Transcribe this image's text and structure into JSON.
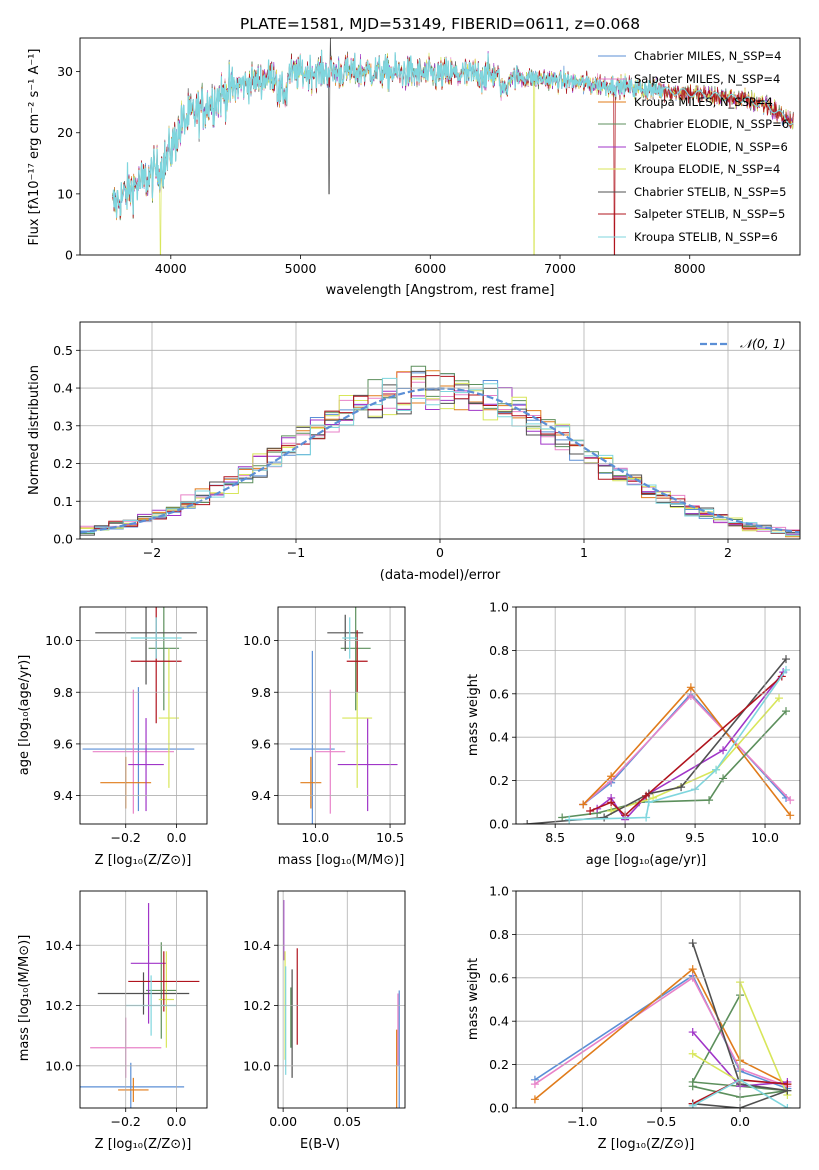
{
  "colors": {
    "series": [
      "#5b8fd6",
      "#e882c8",
      "#e07b1a",
      "#5c8f5c",
      "#a035c8",
      "#d8e65a",
      "#505050",
      "#b0141e",
      "#7fd6de"
    ],
    "gaussian": "#5b8fd6",
    "grid": "#b0b0b0"
  },
  "spectrum_panel": {
    "title": "PLATE=1581, MJD=53149, FIBERID=0611, z=0.068",
    "xlabel": "wavelength [Angstrom, rest frame]",
    "ylabel": "Flux [fλ10⁻¹⁷ erg cm⁻² s⁻¹ A⁻¹]",
    "xticks": [
      "4000",
      "5000",
      "6000",
      "7000",
      "8000"
    ],
    "yticks": [
      "0",
      "10",
      "20",
      "30"
    ],
    "legend": [
      "Chabrier MILES, N_SSP=4",
      "Salpeter MILES, N_SSP=4",
      "Kroupa MILES, N_SSP=4",
      "Chabrier ELODIE, N_SSP=6",
      "Salpeter ELODIE, N_SSP=6",
      "Kroupa ELODIE, N_SSP=4",
      "Chabrier STELIB, N_SSP=5",
      "Salpeter STELIB, N_SSP=5",
      "Kroupa STELIB, N_SSP=6"
    ]
  },
  "residual_panel": {
    "xlabel": "(data-model)/error",
    "ylabel": "Normed distribution",
    "legend": "𝒩(0, 1)",
    "xticks": [
      "−2",
      "−1",
      "0",
      "1",
      "2"
    ],
    "yticks": [
      "0.0",
      "0.1",
      "0.2",
      "0.3",
      "0.4",
      "0.5"
    ]
  },
  "panel_labels": {
    "z_label": "Z [log₁₀(Z/Z⊙)]",
    "age_label": "age  [log₁₀(age/yr)]",
    "mass_label": "mass [log₁₀(M/M⊙)]",
    "ebv_label": "E(B-V)",
    "mass_weight_label": "mass weight"
  },
  "chart_data": [
    {
      "type": "line",
      "panel": "spectrum",
      "xlim": [
        3300,
        8850
      ],
      "ylim": [
        0,
        35.5
      ],
      "continuum_knots": [
        [
          3550,
          8
        ],
        [
          3700,
          11
        ],
        [
          3850,
          13
        ],
        [
          3950,
          15
        ],
        [
          4100,
          22
        ],
        [
          4300,
          25
        ],
        [
          4500,
          27.5
        ],
        [
          4800,
          29.5
        ],
        [
          5100,
          30
        ],
        [
          5500,
          30
        ],
        [
          6000,
          29.5
        ],
        [
          6500,
          29.5
        ],
        [
          7000,
          28.5
        ],
        [
          7500,
          27.5
        ],
        [
          8000,
          26.5
        ],
        [
          8400,
          25.5
        ],
        [
          8600,
          24.5
        ],
        [
          8800,
          21.5
        ]
      ],
      "spikes": [
        [
          3920,
          0
        ],
        [
          5220,
          10
        ],
        [
          5230,
          36
        ],
        [
          6800,
          0
        ],
        [
          7420,
          0
        ]
      ]
    },
    {
      "type": "bar",
      "panel": "residual_histogram",
      "xlim": [
        -2.5,
        2.5
      ],
      "ylim": [
        0,
        0.575
      ],
      "bin_width": 0.1,
      "gaussian": {
        "mean": 0,
        "sigma": 1
      }
    },
    {
      "type": "scatter",
      "panel": "age_vs_Z",
      "xlim": [
        -0.38,
        0.12
      ],
      "ylim": [
        9.29,
        10.13
      ],
      "xticks": [
        -0.2,
        0.0
      ],
      "yticks": [
        9.4,
        9.6,
        9.8,
        10.0
      ],
      "points": [
        {
          "x": -0.15,
          "y": 9.58,
          "xerr": 0.22,
          "yerr": 0.24
        },
        {
          "x": -0.17,
          "y": 9.57,
          "xerr": 0.16,
          "yerr": 0.24
        },
        {
          "x": -0.2,
          "y": 9.45,
          "xerr": 0.1,
          "yerr": 0.1
        },
        {
          "x": -0.05,
          "y": 9.97,
          "xerr": 0.06,
          "yerr": 0.24
        },
        {
          "x": -0.12,
          "y": 9.52,
          "xerr": 0.07,
          "yerr": 0.18
        },
        {
          "x": -0.03,
          "y": 9.7,
          "xerr": 0.04,
          "yerr": 0.27
        },
        {
          "x": -0.12,
          "y": 10.03,
          "xerr": 0.2,
          "yerr": 0.2
        },
        {
          "x": -0.08,
          "y": 9.92,
          "xerr": 0.1,
          "yerr": 0.24
        },
        {
          "x": -0.08,
          "y": 10.01,
          "xerr": 0.1,
          "yerr": 0.08
        }
      ]
    },
    {
      "type": "scatter",
      "panel": "age_vs_mass",
      "xlim": [
        9.75,
        10.6
      ],
      "ylim": [
        9.29,
        10.13
      ],
      "xticks": [
        10.0,
        10.5
      ],
      "yticks": [
        9.4,
        9.6,
        9.8,
        10.0
      ],
      "points": [
        {
          "x": 9.98,
          "y": 9.58,
          "xerr": 0.15,
          "yerr": 0.38
        },
        {
          "x": 10.1,
          "y": 9.57,
          "xerr": 0.1,
          "yerr": 0.24
        },
        {
          "x": 9.97,
          "y": 9.45,
          "xerr": 0.07,
          "yerr": 0.1
        },
        {
          "x": 10.27,
          "y": 9.97,
          "xerr": 0.1,
          "yerr": 0.24
        },
        {
          "x": 10.35,
          "y": 9.52,
          "xerr": 0.2,
          "yerr": 0.18
        },
        {
          "x": 10.28,
          "y": 9.7,
          "xerr": 0.1,
          "yerr": 0.27
        },
        {
          "x": 10.2,
          "y": 10.03,
          "xerr": 0.12,
          "yerr": 0.07
        },
        {
          "x": 10.28,
          "y": 9.92,
          "xerr": 0.07,
          "yerr": 0.12
        },
        {
          "x": 10.23,
          "y": 10.01,
          "xerr": 0.05,
          "yerr": 0.08
        }
      ]
    },
    {
      "type": "line",
      "panel": "mass_weight_vs_age",
      "xlim": [
        8.22,
        10.25
      ],
      "ylim": [
        0,
        1
      ],
      "xticks": [
        8.5,
        9.0,
        9.5,
        10.0
      ],
      "yticks": [
        0.0,
        0.2,
        0.4,
        0.6,
        0.8,
        1.0
      ],
      "series": [
        {
          "x": [
            8.7,
            8.9,
            9.47,
            10.15
          ],
          "y": [
            0.09,
            0.19,
            0.6,
            0.12
          ]
        },
        {
          "x": [
            8.7,
            8.9,
            9.47,
            10.18
          ],
          "y": [
            0.09,
            0.2,
            0.59,
            0.11
          ]
        },
        {
          "x": [
            8.7,
            8.9,
            9.47,
            10.18
          ],
          "y": [
            0.09,
            0.22,
            0.63,
            0.04
          ]
        },
        {
          "x": [
            8.55,
            8.8,
            9.1,
            9.6,
            9.7,
            10.15
          ],
          "y": [
            0.03,
            0.05,
            0.1,
            0.11,
            0.21,
            0.52
          ]
        },
        {
          "x": [
            8.8,
            8.9,
            9.0,
            9.17,
            9.7,
            10.13
          ],
          "y": [
            0.07,
            0.12,
            0.02,
            0.14,
            0.34,
            0.7
          ]
        },
        {
          "x": [
            8.9,
            9.2,
            9.65,
            10.1
          ],
          "y": [
            0.06,
            0.12,
            0.25,
            0.58
          ]
        },
        {
          "x": [
            8.3,
            8.85,
            9.17,
            9.4,
            10.15
          ],
          "y": [
            0.0,
            0.03,
            0.14,
            0.17,
            0.76
          ]
        },
        {
          "x": [
            8.75,
            8.9,
            9.0,
            9.15,
            10.12
          ],
          "y": [
            0.06,
            0.1,
            0.04,
            0.13,
            0.68
          ]
        },
        {
          "x": [
            8.6,
            9.15,
            9.17,
            9.5,
            9.65,
            10.15
          ],
          "y": [
            0.02,
            0.03,
            0.1,
            0.16,
            0.25,
            0.71
          ]
        }
      ]
    },
    {
      "type": "scatter",
      "panel": "mass_vs_Z",
      "xlim": [
        -0.38,
        0.12
      ],
      "ylim": [
        9.86,
        10.58
      ],
      "xticks": [
        -0.2,
        0.0
      ],
      "yticks": [
        10.0,
        10.2,
        10.4
      ],
      "points": [
        {
          "x": -0.18,
          "y": 9.93,
          "xerr": 0.21,
          "yerr": 0.08
        },
        {
          "x": -0.2,
          "y": 10.06,
          "xerr": 0.14,
          "yerr": 0.1
        },
        {
          "x": -0.17,
          "y": 9.92,
          "xerr": 0.06,
          "yerr": 0.04
        },
        {
          "x": -0.06,
          "y": 10.25,
          "xerr": 0.06,
          "yerr": 0.16
        },
        {
          "x": -0.11,
          "y": 10.34,
          "xerr": 0.07,
          "yerr": 0.2
        },
        {
          "x": -0.04,
          "y": 10.22,
          "xerr": 0.03,
          "yerr": 0.16
        },
        {
          "x": -0.13,
          "y": 10.24,
          "xerr": 0.18,
          "yerr": 0.07
        },
        {
          "x": -0.05,
          "y": 10.28,
          "xerr": 0.14,
          "yerr": 0.1
        },
        {
          "x": -0.1,
          "y": 10.2,
          "xerr": 0.1,
          "yerr": 0.1
        }
      ]
    },
    {
      "type": "scatter",
      "panel": "mass_vs_EBV",
      "xlim": [
        -0.004,
        0.095
      ],
      "ylim": [
        9.86,
        10.58
      ],
      "xticks": [
        0.0,
        0.05
      ],
      "yticks": [
        10.0,
        10.2,
        10.4
      ],
      "points": [
        {
          "x": 0.0905,
          "y": 10.05,
          "xerr": 0,
          "yerr": 0.2
        },
        {
          "x": 0.0895,
          "y": 10.12,
          "xerr": 0,
          "yerr": 0.12
        },
        {
          "x": 0.0885,
          "y": 9.97,
          "xerr": 0,
          "yerr": 0.15
        },
        {
          "x": 0.006,
          "y": 10.16,
          "xerr": 0,
          "yerr": 0.1
        },
        {
          "x": 0.0005,
          "y": 10.45,
          "xerr": 0,
          "yerr": 0.1
        },
        {
          "x": 0.0015,
          "y": 10.2,
          "xerr": 0,
          "yerr": 0.18
        },
        {
          "x": 0.007,
          "y": 10.14,
          "xerr": 0,
          "yerr": 0.18
        },
        {
          "x": 0.011,
          "y": 10.23,
          "xerr": 0,
          "yerr": 0.16
        },
        {
          "x": 0.002,
          "y": 10.15,
          "xerr": 0,
          "yerr": 0.18
        }
      ]
    },
    {
      "type": "line",
      "panel": "mass_weight_vs_Z",
      "xlim": [
        -1.42,
        0.38
      ],
      "ylim": [
        0,
        1
      ],
      "xticks": [
        -1.0,
        -0.5,
        0.0
      ],
      "yticks": [
        0.0,
        0.2,
        0.4,
        0.6,
        0.8,
        1.0
      ],
      "series": [
        {
          "x": [
            -1.3,
            -0.3,
            0.0,
            0.3
          ],
          "y": [
            0.13,
            0.61,
            0.17,
            0.09
          ]
        },
        {
          "x": [
            -1.3,
            -0.3,
            0.0,
            0.3
          ],
          "y": [
            0.11,
            0.6,
            0.18,
            0.1
          ]
        },
        {
          "x": [
            -1.3,
            -0.3,
            0.0,
            0.3
          ],
          "y": [
            0.04,
            0.64,
            0.22,
            0.11
          ]
        },
        {
          "x": [
            -0.3,
            0.0,
            0.3,
            -0.3,
            0.0
          ],
          "y": [
            0.1,
            0.05,
            0.08,
            0.12,
            0.52
          ]
        },
        {
          "x": [
            -0.3,
            0.0,
            0.3
          ],
          "y": [
            0.35,
            0.1,
            0.12
          ]
        },
        {
          "x": [
            -0.3,
            0.0,
            0.0,
            0.3
          ],
          "y": [
            0.25,
            0.12,
            0.58,
            0.06
          ]
        },
        {
          "x": [
            -0.3,
            0.0,
            0.3,
            0.0,
            -0.3
          ],
          "y": [
            0.02,
            0.0,
            0.08,
            0.11,
            0.76
          ]
        },
        {
          "x": [
            -0.3,
            0.0,
            0.3
          ],
          "y": [
            0.02,
            0.13,
            0.11
          ]
        },
        {
          "x": [
            -0.3,
            0.0,
            0.3
          ],
          "y": [
            0.01,
            0.13,
            0.0
          ]
        }
      ]
    }
  ]
}
